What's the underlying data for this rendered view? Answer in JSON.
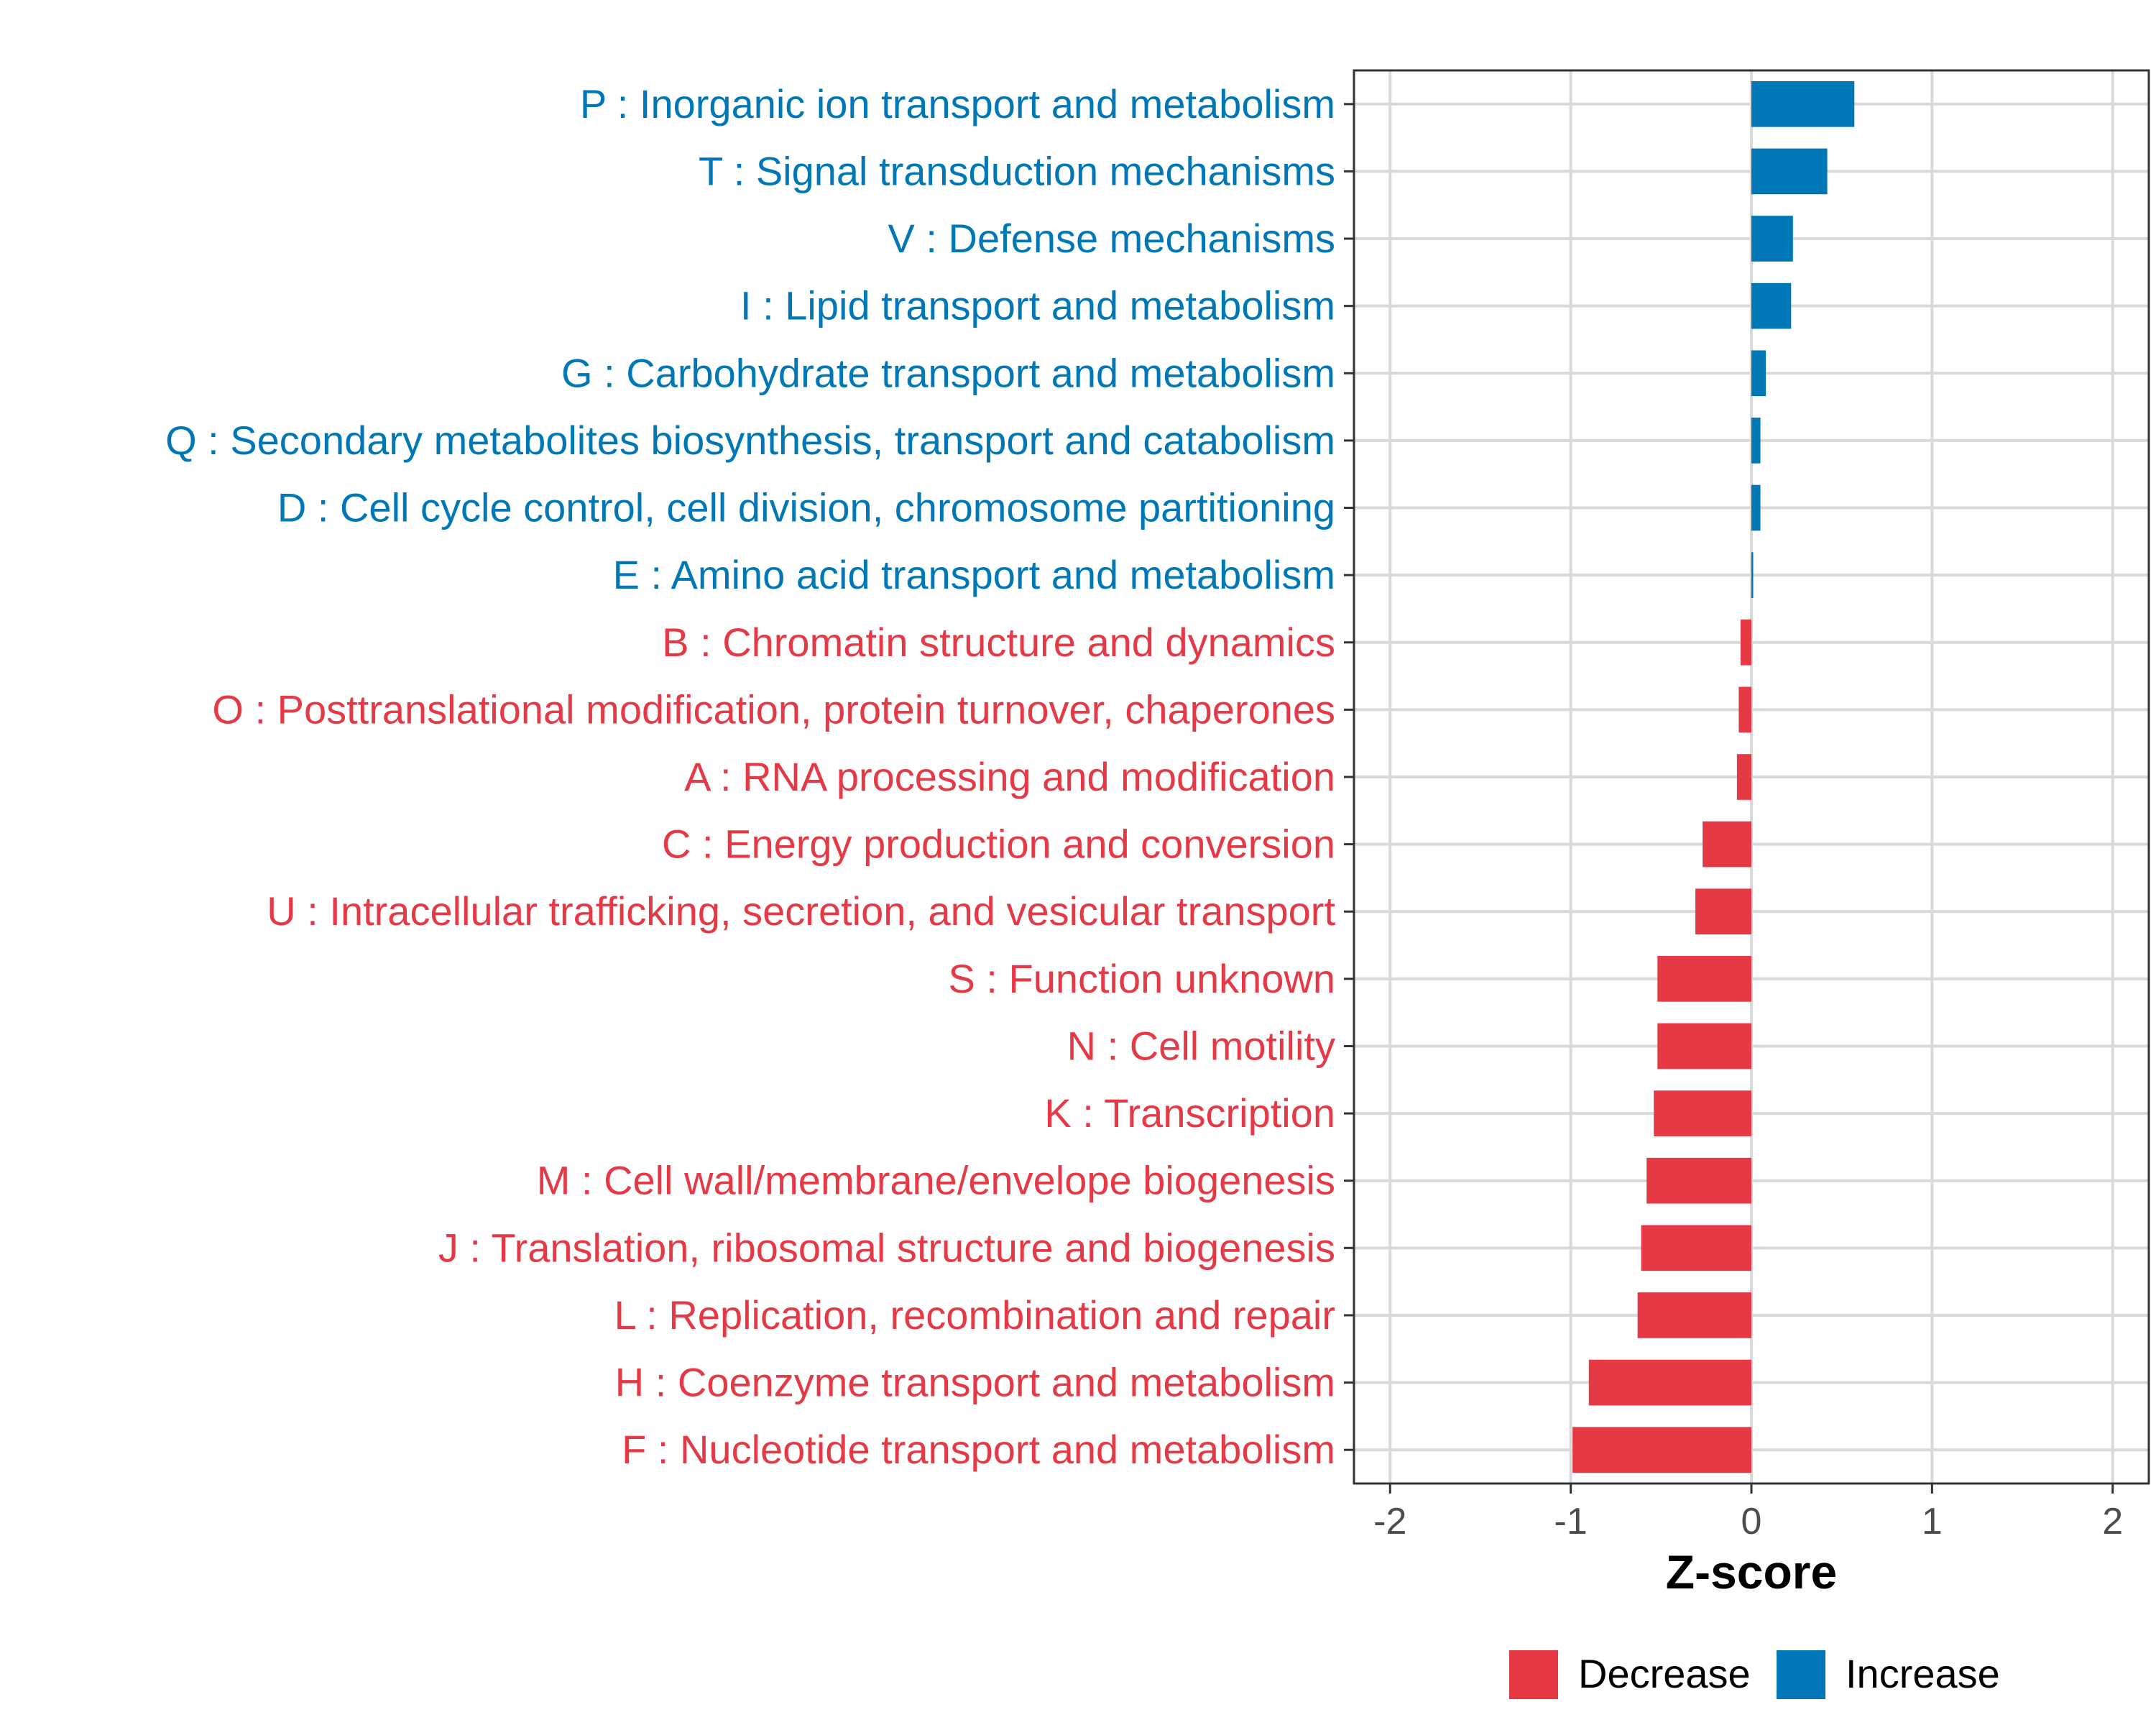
{
  "chart_data": {
    "type": "bar",
    "orientation": "horizontal",
    "title": "",
    "xlabel": "Z-score",
    "ylabel": "",
    "xlim": [
      -2.2,
      2.2
    ],
    "xticks": [
      -2,
      -1,
      0,
      1,
      2
    ],
    "xtick_labels": [
      "-2",
      "-1",
      "0",
      "1",
      "2"
    ],
    "grid": true,
    "colors": {
      "Decrease": "#e63946",
      "Increase": "#0077b6"
    },
    "legend": {
      "placement": "bottom",
      "entries": [
        {
          "label": "Decrease",
          "color": "#e63946"
        },
        {
          "label": "Increase",
          "color": "#0077b6"
        }
      ]
    },
    "categories": [
      "P : Inorganic ion transport and metabolism",
      "T : Signal transduction mechanisms",
      "V : Defense mechanisms",
      "I : Lipid transport and metabolism",
      "G : Carbohydrate transport and metabolism",
      "Q : Secondary metabolites biosynthesis, transport and catabolism",
      "D : Cell cycle control, cell division, chromosome partitioning",
      "E : Amino acid transport and metabolism",
      "B : Chromatin structure and dynamics",
      "O : Posttranslational modification, protein turnover, chaperones",
      "A : RNA processing and modification",
      "C : Energy production and conversion",
      "U : Intracellular trafficking, secretion, and vesicular transport",
      "S : Function unknown",
      "N : Cell motility",
      "K : Transcription",
      "M : Cell wall/membrane/envelope biogenesis",
      "J : Translation, ribosomal structure and biogenesis",
      "L : Replication, recombination and repair",
      "H : Coenzyme transport and metabolism",
      "F : Nucleotide transport and metabolism"
    ],
    "values": [
      0.57,
      0.42,
      0.23,
      0.22,
      0.08,
      0.05,
      0.05,
      0.01,
      -0.06,
      -0.07,
      -0.08,
      -0.27,
      -0.31,
      -0.52,
      -0.52,
      -0.54,
      -0.58,
      -0.61,
      -0.63,
      -0.9,
      -0.99
    ],
    "groups": [
      "Increase",
      "Increase",
      "Increase",
      "Increase",
      "Increase",
      "Increase",
      "Increase",
      "Increase",
      "Decrease",
      "Decrease",
      "Decrease",
      "Decrease",
      "Decrease",
      "Decrease",
      "Decrease",
      "Decrease",
      "Decrease",
      "Decrease",
      "Decrease",
      "Decrease",
      "Decrease"
    ]
  }
}
